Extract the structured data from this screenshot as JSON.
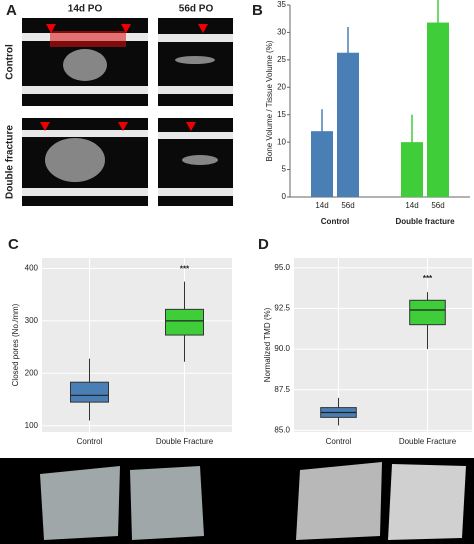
{
  "image_panel": {
    "panel": "A",
    "columns": [
      "14d PO",
      "56d PO"
    ],
    "rows": [
      "Control",
      "Double fracture"
    ]
  },
  "chart_data": [
    {
      "type": "bar",
      "panel": "B",
      "ylabel": "Bone Volume / Tissue Volume (%)",
      "categories": [
        "14d",
        "56d",
        "14d",
        "56d"
      ],
      "groups": [
        "Control",
        "Double fracture"
      ],
      "values": [
        12,
        26.3,
        10,
        31.8
      ],
      "errors": [
        4,
        4.7,
        5,
        4.2
      ],
      "colors": [
        "#4a7fb5",
        "#4a7fb5",
        "#3fce3a",
        "#3fce3a"
      ],
      "ylim": [
        0,
        35
      ],
      "yticks": [
        0,
        5,
        10,
        15,
        20,
        25,
        30,
        35
      ],
      "grid": false
    },
    {
      "type": "box",
      "panel": "C",
      "ylabel": "Closed pores (No./mm)",
      "categories": [
        "Control",
        "Double Fracture"
      ],
      "colors": [
        "#4a7fb5",
        "#3fce3a"
      ],
      "boxes": [
        {
          "whislo": 110,
          "q1": 145,
          "med": 158,
          "q3": 183,
          "whishi": 228
        },
        {
          "whislo": 222,
          "q1": 273,
          "med": 300,
          "q3": 322,
          "whishi": 375
        }
      ],
      "annotation": {
        "text": "***",
        "category": 1,
        "y": 398
      },
      "ylim": [
        88,
        420
      ],
      "yticks": [
        100,
        200,
        300,
        400
      ],
      "grid": true
    },
    {
      "type": "box",
      "panel": "D",
      "ylabel": "Normalized TMD (%)",
      "categories": [
        "Control",
        "Double Fracture"
      ],
      "colors": [
        "#4a7fb5",
        "#3fce3a"
      ],
      "boxes": [
        {
          "whislo": 85.3,
          "q1": 85.8,
          "med": 86.1,
          "q3": 86.4,
          "whishi": 87.0
        },
        {
          "whislo": 90.0,
          "q1": 91.5,
          "med": 92.4,
          "q3": 93.0,
          "whishi": 93.5
        }
      ],
      "annotation": {
        "text": "***",
        "category": 1,
        "y": 94.3
      },
      "ylim": [
        84.9,
        95.6
      ],
      "yticks": [
        {
          "value": 85,
          "label": "85.0"
        },
        {
          "value": 87.5,
          "label": "87.5"
        },
        {
          "value": 90,
          "label": "90.0"
        },
        {
          "value": 92.5,
          "label": "92.5"
        },
        {
          "value": 95,
          "label": "95.0"
        }
      ],
      "grid": true
    }
  ]
}
